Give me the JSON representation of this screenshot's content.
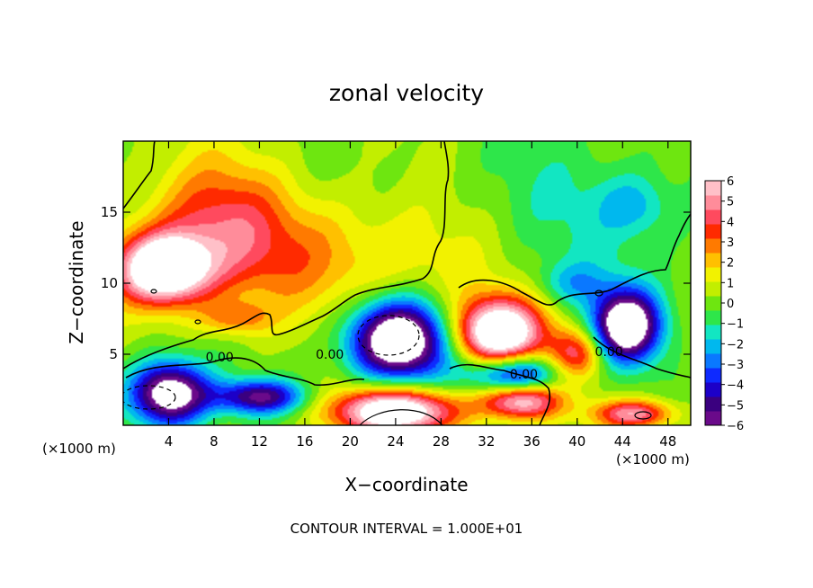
{
  "chart_data": {
    "type": "heatmap",
    "title": "zonal velocity",
    "xlabel": "X−coordinate",
    "ylabel": "Z−coordinate",
    "x_unit_left": "(×1000 m)",
    "x_unit_right": "(×1000 m)",
    "footer": "CONTOUR INTERVAL = 1.000E+01",
    "xlim": [
      0,
      50
    ],
    "ylim": [
      0,
      20
    ],
    "x_ticks": [
      4,
      8,
      12,
      16,
      20,
      24,
      28,
      32,
      36,
      40,
      44,
      48
    ],
    "x_tick_labels": [
      "4",
      "8",
      "12",
      "16",
      "20",
      "24",
      "28",
      "32",
      "36",
      "40",
      "44",
      "48"
    ],
    "y_ticks": [
      5,
      10,
      15
    ],
    "y_tick_labels": [
      "5",
      "10",
      "15"
    ],
    "colorbar": {
      "min": -6,
      "max": 6,
      "tick_values": [
        6,
        5,
        4,
        3,
        2,
        1,
        0,
        -1,
        -2,
        -3,
        -4,
        -5,
        -6
      ],
      "tick_labels": [
        "6",
        "5",
        "4",
        "3",
        "2",
        "1",
        "0",
        "−1",
        "−2",
        "−3",
        "−4",
        "−5",
        "−6"
      ],
      "colors": [
        "#6a0a8a",
        "#3a007f",
        "#1c00c8",
        "#0e2aff",
        "#0a78ff",
        "#00b8ee",
        "#12e6c2",
        "#2ee64a",
        "#6ee610",
        "#c2ee00",
        "#f2f200",
        "#ffc000",
        "#ff7a00",
        "#ff2a00",
        "#ff4a5e",
        "#ff8c9a",
        "#ffc0c8"
      ]
    },
    "contour_labels": [
      {
        "text": "0.00",
        "x": 8.5,
        "y": 4.8
      },
      {
        "text": "0.00",
        "x": 18.2,
        "y": 5.0
      },
      {
        "text": "0.00",
        "x": 35.3,
        "y": 3.6
      },
      {
        "text": "0.00",
        "x": 42.8,
        "y": 5.2
      }
    ],
    "features": [
      {
        "kind": "blob",
        "x": 3.5,
        "y": 11.0,
        "rx": 4.0,
        "ry": 2.4,
        "v": 8.5
      },
      {
        "kind": "blob",
        "x": 8.0,
        "y": 14.5,
        "rx": 6.0,
        "ry": 4.5,
        "v": 3.0
      },
      {
        "kind": "blob",
        "x": 12.0,
        "y": 12.0,
        "rx": 8.0,
        "ry": 4.0,
        "v": 1.8
      },
      {
        "kind": "blob",
        "x": 24.0,
        "y": 11.5,
        "rx": 10.0,
        "ry": 4.5,
        "v": 1.6
      },
      {
        "kind": "blob",
        "x": 10.0,
        "y": 7.5,
        "rx": 3.0,
        "ry": 1.2,
        "v": 2.4
      },
      {
        "kind": "blob",
        "x": 4.0,
        "y": 2.2,
        "rx": 3.5,
        "ry": 2.3,
        "v": -8.0
      },
      {
        "kind": "blob",
        "x": 12.0,
        "y": 2.0,
        "rx": 4.0,
        "ry": 1.2,
        "v": -5.5
      },
      {
        "kind": "blob",
        "x": 24.3,
        "y": 6.0,
        "rx": 4.5,
        "ry": 2.8,
        "v": -9.0
      },
      {
        "kind": "blob",
        "x": 24.0,
        "y": 1.0,
        "rx": 5.5,
        "ry": 1.6,
        "v": 8.0
      },
      {
        "kind": "blob",
        "x": 33.0,
        "y": 6.5,
        "rx": 4.0,
        "ry": 2.4,
        "v": 8.5
      },
      {
        "kind": "blob",
        "x": 34.5,
        "y": 3.5,
        "rx": 4.0,
        "ry": 1.5,
        "v": -6.0
      },
      {
        "kind": "blob",
        "x": 35.0,
        "y": 1.8,
        "rx": 3.5,
        "ry": 1.3,
        "v": 6.5
      },
      {
        "kind": "blob",
        "x": 40.0,
        "y": 5.0,
        "rx": 2.5,
        "ry": 1.8,
        "v": 4.0
      },
      {
        "kind": "blob",
        "x": 44.3,
        "y": 7.0,
        "rx": 3.0,
        "ry": 2.5,
        "v": -8.5
      },
      {
        "kind": "blob",
        "x": 45.0,
        "y": 0.8,
        "rx": 3.5,
        "ry": 1.0,
        "v": 5.0
      },
      {
        "kind": "blob",
        "x": 41.0,
        "y": 15.0,
        "rx": 12.0,
        "ry": 6.0,
        "v": -1.3
      },
      {
        "kind": "blob",
        "x": 45.0,
        "y": 15.5,
        "rx": 3.0,
        "ry": 2.0,
        "v": -1.6
      },
      {
        "kind": "blob",
        "x": 39.5,
        "y": 10.0,
        "rx": 3.0,
        "ry": 1.5,
        "v": -1.8
      }
    ]
  }
}
